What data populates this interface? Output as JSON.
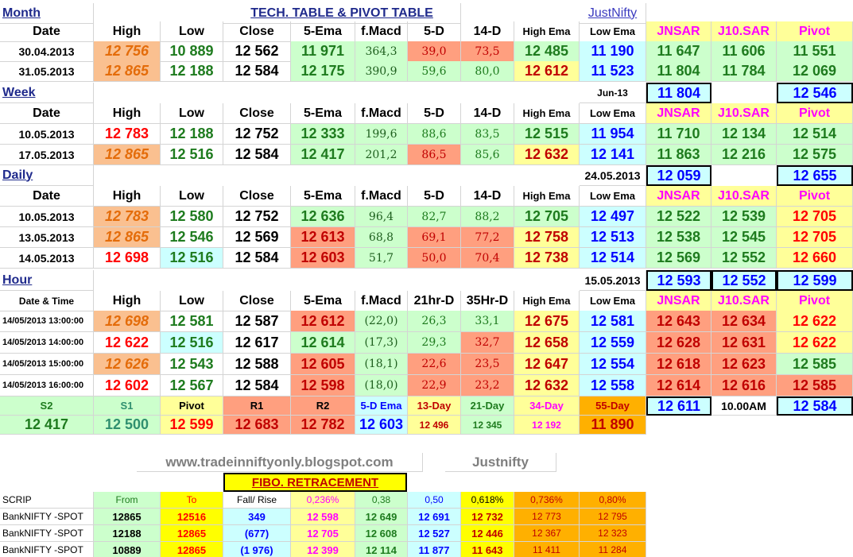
{
  "colors": {
    "green_text": "#1e7b1e",
    "red_text": "#ff0000",
    "orange_text": "#e46c0a",
    "blue_text": "#0000ff",
    "teal_text": "#2f8f6f",
    "dark_red_text": "#c00000",
    "pink_text": "#ff00ff",
    "header_blue": "#1f2a8c",
    "bg_orange": "#fac090",
    "bg_green": "#ccffcc",
    "bg_yellow": "#ffff99",
    "bg_lightblue": "#ccffff",
    "bg_salmon": "#ff9f7f",
    "bg_orange_strong": "#ffb000",
    "bg_yellow_strong": "#ffff00"
  },
  "titles": {
    "main": "TECH. TABLE  & PIVOT TABLE",
    "link": "JustNifty",
    "website": "www.tradeinniftyonly.blogspot.com",
    "brand": "Justnifty",
    "fibo": "FIBO. RETRACEMENT"
  },
  "month": {
    "label": "Month",
    "headers": [
      "Date",
      "High",
      "Low",
      "Close",
      "5-Ema",
      "f.Macd",
      "5-D",
      "14-D",
      "High Ema",
      "Low Ema",
      "JNSAR",
      "J10.SAR",
      "Pivot"
    ],
    "rows": [
      [
        "30.04.2013",
        "12 756",
        "10 889",
        "12 562",
        "11 971",
        "364,3",
        "39,0",
        "73,5",
        "12 485",
        "11 190",
        "11 647",
        "11 606",
        "11 551"
      ],
      [
        "31.05.2013",
        "12 865",
        "12 188",
        "12 584",
        "12 175",
        "390,9",
        "59,6",
        "80,0",
        "12 612",
        "11 523",
        "11 804",
        "11 784",
        "12 069"
      ]
    ]
  },
  "week": {
    "label": "Week",
    "period": "Jun-13",
    "sar": "11 804",
    "pivot": "12 546",
    "headers": [
      "Date",
      "High",
      "Low",
      "Close",
      "5-Ema",
      "f.Macd",
      "5-D",
      "14-D",
      "High Ema",
      "Low Ema",
      "JNSAR",
      "J10.SAR",
      "Pivot"
    ],
    "rows": [
      [
        "10.05.2013",
        "12 783",
        "12 188",
        "12 752",
        "12 333",
        "199,6",
        "88,6",
        "83,5",
        "12 515",
        "11 954",
        "11 710",
        "12 134",
        "12 514"
      ],
      [
        "17.05.2013",
        "12 865",
        "12 516",
        "12 584",
        "12 417",
        "201,2",
        "86,5",
        "85,6",
        "12 632",
        "12 141",
        "11 863",
        "12 216",
        "12 575"
      ]
    ]
  },
  "daily": {
    "label": "Daily",
    "period": "24.05.2013",
    "sar": "12 059",
    "pivot": "12 655",
    "headers": [
      "Date",
      "High",
      "Low",
      "Close",
      "5-Ema",
      "f.Macd",
      "5-D",
      "14-D",
      "High Ema",
      "Low Ema",
      "JNSAR",
      "J10.SAR",
      "Pivot"
    ],
    "rows": [
      [
        "10.05.2013",
        "12 783",
        "12 580",
        "12 752",
        "12 636",
        "96,4",
        "82,7",
        "88,2",
        "12 705",
        "12 497",
        "12 522",
        "12 539",
        "12 705"
      ],
      [
        "13.05.2013",
        "12 865",
        "12 546",
        "12 569",
        "12 613",
        "68,8",
        "69,1",
        "77,2",
        "12 758",
        "12 513",
        "12 538",
        "12 545",
        "12 705"
      ],
      [
        "14.05.2013",
        "12 698",
        "12 516",
        "12 584",
        "12 603",
        "51,7",
        "50,0",
        "70,4",
        "12 738",
        "12 514",
        "12 569",
        "12 552",
        "12 660"
      ]
    ]
  },
  "hour": {
    "label": "Hour",
    "period": "15.05.2013",
    "sar": "12 593",
    "sar2": "12 552",
    "pivot": "12 599",
    "headers": [
      "Date & Time",
      "High",
      "Low",
      "Close",
      "5-Ema",
      "f.Macd",
      "21hr-D",
      "35Hr-D",
      "High Ema",
      "Low Ema",
      "JNSAR",
      "J10.SAR",
      "Pivot"
    ],
    "rows": [
      [
        "14/05/2013 13:00:00",
        "12 698",
        "12 581",
        "12 587",
        "12 612",
        "(22,0)",
        "26,3",
        "33,1",
        "12 675",
        "12 581",
        "12 643",
        "12 634",
        "12 622"
      ],
      [
        "14/05/2013 14:00:00",
        "12 622",
        "12 516",
        "12 617",
        "12 614",
        "(17,3)",
        "29,3",
        "32,7",
        "12 658",
        "12 559",
        "12 628",
        "12 631",
        "12 622"
      ],
      [
        "14/05/2013 15:00:00",
        "12 626",
        "12 543",
        "12 588",
        "12 605",
        "(18,1)",
        "22,6",
        "23,5",
        "12 647",
        "12 554",
        "12 618",
        "12 623",
        "12 585"
      ],
      [
        "14/05/2013 16:00:00",
        "12 602",
        "12 567",
        "12 584",
        "12 598",
        "(18,0)",
        "22,9",
        "23,2",
        "12 632",
        "12 558",
        "12 614",
        "12 616",
        "12 585"
      ]
    ]
  },
  "levels": {
    "labels": [
      "S2",
      "S1",
      "Pivot",
      "R1",
      "R2",
      "5-D Ema",
      "13-Day",
      "21-Day",
      "34-Day",
      "55-Day"
    ],
    "values": [
      "12 417",
      "12 500",
      "12 599",
      "12 683",
      "12 782",
      "12 603",
      "12 496",
      "12 345",
      "12 192",
      "11 890"
    ],
    "sar": "12 611",
    "time": "10.00AM",
    "pivot": "12 584"
  },
  "fibo": {
    "headers": [
      "SCRIP",
      "From",
      "To",
      "Fall/ Rise",
      "0,236%",
      "0,38",
      "0,50",
      "0,618%",
      "0,736%",
      "0,80%"
    ],
    "rows": [
      [
        "BankNIFTY -SPOT",
        "12865",
        "12516",
        "349",
        "12 598",
        "12 649",
        "12 691",
        "12 732",
        "12 773",
        "12 795"
      ],
      [
        "BankNIFTY -SPOT",
        "12188",
        "12865",
        "(677)",
        "12 705",
        "12 608",
        "12 527",
        "12 446",
        "12 367",
        "12 323"
      ],
      [
        "BankNIFTY -SPOT",
        "10889",
        "12865",
        "(1 976)",
        "12 399",
        "12 114",
        "11 877",
        "11 643",
        "11 411",
        "11 284"
      ]
    ]
  }
}
